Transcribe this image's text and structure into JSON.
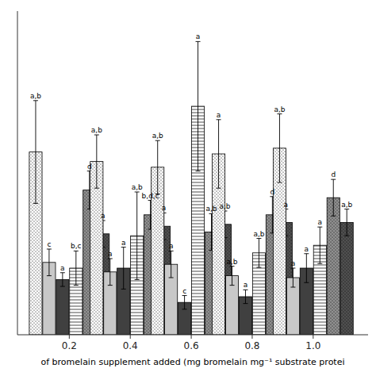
{
  "chart_data": {
    "type": "bar",
    "xlabel": "of bromelain supplement added (mg bromelain mg⁻¹ substrate protei",
    "x": [
      0.2,
      0.4,
      0.6,
      0.8,
      1.0
    ],
    "xlim": [
      0.03,
      1.18
    ],
    "xticks": [
      0.2,
      0.4,
      0.6,
      0.8,
      {
        "value": 1.0,
        "label": "1.0"
      }
    ],
    "ylim": [
      0,
      0.85
    ],
    "yticks": [],
    "tick_labels": "x",
    "grid": false,
    "series": [
      {
        "color": "white",
        "values": [
          0.48,
          0.455,
          0.44,
          0.475,
          0.49
        ],
        "errors": [
          0.135,
          0.07,
          0.07,
          0.09,
          0.09
        ],
        "labels": [
          "a,b",
          "a,b",
          "a,b",
          "a",
          "a,b"
        ]
      },
      {
        "color": "#c8c8c8",
        "values": [
          0.19,
          0.165,
          0.185,
          0.155,
          0.15
        ],
        "errors": [
          0.035,
          0.035,
          0.035,
          0.025,
          0.025
        ],
        "labels": [
          "c",
          "a",
          "a",
          "a,b",
          "a"
        ]
      },
      {
        "color": "#404040",
        "values": [
          0.145,
          0.175,
          0.085,
          0.1,
          0.175
        ],
        "errors": [
          0.018,
          0.055,
          0.018,
          0.018,
          0.038
        ],
        "labels": [
          "a",
          "a",
          "c",
          "a",
          "a"
        ]
      },
      {
        "color": "white",
        "values": [
          0.175,
          0.26,
          0.6,
          0.215,
          0.235
        ],
        "errors": [
          0.045,
          0.115,
          0.17,
          0.038,
          0.048
        ],
        "labels": [
          "b,c",
          "a,b",
          "a",
          "a,b",
          "a"
        ]
      },
      {
        "color": "#909090",
        "values": [
          0.38,
          0.315,
          0.27,
          0.315,
          0.36
        ],
        "errors": [
          0.05,
          0.038,
          0.048,
          0.048,
          0.048
        ],
        "labels": [
          "d",
          "b,d,c",
          "a,b",
          "d",
          "d"
        ]
      },
      {
        "color": "#505050",
        "values": [
          0.265,
          0.285,
          0.29,
          0.295,
          0.295
        ],
        "errors": [
          0.035,
          0.035,
          0.035,
          0.035,
          0.035
        ],
        "labels": [
          "a",
          "a",
          "a,b",
          "a",
          "a,b"
        ]
      }
    ]
  }
}
